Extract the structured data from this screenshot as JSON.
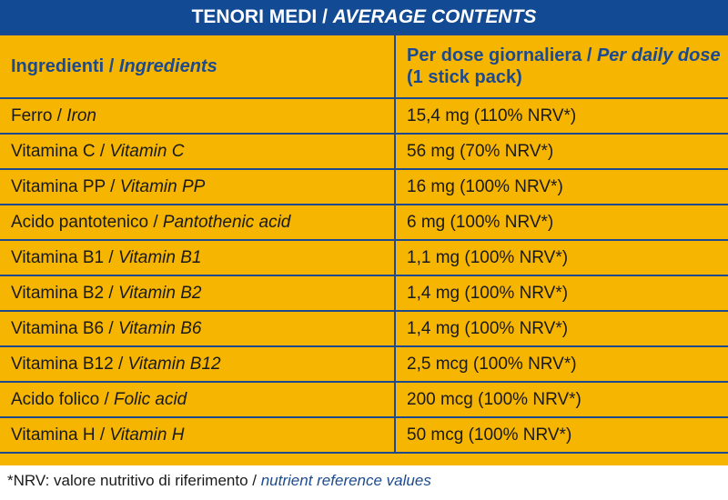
{
  "title": {
    "main": "TENORI MEDI / ",
    "italic": "AVERAGE CONTENTS"
  },
  "header": {
    "col1": {
      "main": "Ingredienti / ",
      "italic": "Ingredients"
    },
    "col2": {
      "main": "Per dose giornaliera / ",
      "italic": "Per daily dose",
      "tail": " (1 stick pack)"
    }
  },
  "rows": [
    {
      "name": "Ferro / ",
      "name_en": "Iron",
      "value": "15,4 mg (110% NRV*)"
    },
    {
      "name": "Vitamina C / ",
      "name_en": "Vitamin C",
      "value": "56 mg (70% NRV*)"
    },
    {
      "name": "Vitamina PP / ",
      "name_en": "Vitamin PP",
      "value": "16 mg (100% NRV*)"
    },
    {
      "name": "Acido pantotenico / ",
      "name_en": "Pantothenic acid",
      "value": "6 mg (100% NRV*)"
    },
    {
      "name": "Vitamina B1 / ",
      "name_en": "Vitamin B1",
      "value": "1,1 mg (100% NRV*)"
    },
    {
      "name": "Vitamina B2 / ",
      "name_en": "Vitamin B2",
      "value": "1,4 mg (100% NRV*)"
    },
    {
      "name": "Vitamina B6 / ",
      "name_en": "Vitamin B6",
      "value": "1,4 mg (100% NRV*)"
    },
    {
      "name": "Vitamina B12 / ",
      "name_en": "Vitamin B12",
      "value": "2,5 mcg (100% NRV*)"
    },
    {
      "name": "Acido folico / ",
      "name_en": "Folic acid",
      "value": "200 mcg (100% NRV*)"
    },
    {
      "name": "Vitamina H / ",
      "name_en": "Vitamin H",
      "value": "50 mcg (100% NRV*)"
    }
  ],
  "footnote": {
    "main": "*NRV: valore nutritivo di riferimento / ",
    "italic": "nutrient reference values"
  },
  "colors": {
    "background": "#f6b500",
    "title_bar": "#124a94",
    "text_blue": "#1d4a8e"
  }
}
